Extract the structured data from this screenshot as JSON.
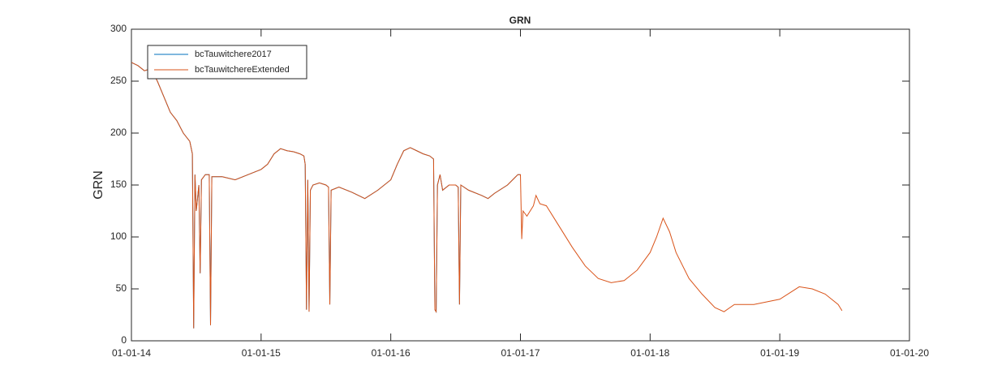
{
  "chart_data": {
    "type": "line",
    "title": "GRN",
    "ylabel": "GRN",
    "x": [
      2014.0,
      2014.05,
      2014.1,
      2014.15,
      2014.2,
      2014.25,
      2014.3,
      2014.35,
      2014.4,
      2014.45,
      2014.47,
      2014.48,
      2014.49,
      2014.5,
      2014.52,
      2014.53,
      2014.54,
      2014.57,
      2014.6,
      2014.61,
      2014.62,
      2014.7,
      2014.8,
      2014.9,
      2015.0,
      2015.05,
      2015.1,
      2015.15,
      2015.2,
      2015.25,
      2015.3,
      2015.33,
      2015.34,
      2015.35,
      2015.36,
      2015.37,
      2015.38,
      2015.4,
      2015.45,
      2015.5,
      2015.52,
      2015.53,
      2015.54,
      2015.6,
      2015.7,
      2015.8,
      2015.9,
      2016.0,
      2016.05,
      2016.1,
      2016.15,
      2016.2,
      2016.25,
      2016.3,
      2016.33,
      2016.34,
      2016.35,
      2016.36,
      2016.38,
      2016.4,
      2016.45,
      2016.5,
      2016.52,
      2016.53,
      2016.54,
      2016.6,
      2016.7,
      2016.75,
      2016.8,
      2016.9,
      2016.98,
      2017.0,
      2017.01,
      2017.02,
      2017.05,
      2017.1,
      2017.12,
      2017.15,
      2017.2,
      2017.3,
      2017.4,
      2017.5,
      2017.6,
      2017.7,
      2017.8,
      2017.9,
      2018.0,
      2018.05,
      2018.1,
      2018.15,
      2018.2,
      2018.3,
      2018.4,
      2018.5,
      2018.57,
      2018.65,
      2018.8,
      2019.0,
      2019.1,
      2019.15,
      2019.25,
      2019.35,
      2019.45,
      2019.48
    ],
    "series": [
      {
        "name": "bcTauwitchere2017",
        "color": "#0072BD",
        "values": [
          268,
          265,
          260,
          262,
          250,
          235,
          220,
          212,
          200,
          192,
          180,
          12,
          160,
          125,
          150,
          65,
          155,
          160,
          160,
          15,
          158,
          158,
          155,
          160,
          165,
          170,
          180,
          185,
          183,
          182,
          180,
          178,
          170,
          30,
          155,
          28,
          145,
          150,
          152,
          150,
          148,
          35,
          145,
          148,
          143,
          137,
          145,
          155,
          170,
          183,
          186,
          183,
          180,
          178,
          175,
          30,
          28,
          150,
          160,
          145,
          150,
          150,
          148,
          35,
          150,
          145,
          140,
          137,
          142,
          150,
          160,
          160,
          null,
          null,
          null,
          null,
          null,
          null,
          null,
          null,
          null,
          null,
          null,
          null,
          null,
          null,
          null,
          null,
          null,
          null,
          null,
          null,
          null,
          null,
          null,
          null,
          null,
          null,
          null,
          null,
          null,
          null,
          null,
          null
        ]
      },
      {
        "name": "bcTauwitchereExtended",
        "color": "#D95319",
        "values": [
          268,
          265,
          260,
          262,
          250,
          235,
          220,
          212,
          200,
          192,
          180,
          12,
          160,
          125,
          150,
          65,
          155,
          160,
          160,
          15,
          158,
          158,
          155,
          160,
          165,
          170,
          180,
          185,
          183,
          182,
          180,
          178,
          170,
          30,
          155,
          28,
          145,
          150,
          152,
          150,
          148,
          35,
          145,
          148,
          143,
          137,
          145,
          155,
          170,
          183,
          186,
          183,
          180,
          178,
          175,
          30,
          28,
          150,
          160,
          145,
          150,
          150,
          148,
          35,
          150,
          145,
          140,
          137,
          142,
          150,
          160,
          160,
          98,
          125,
          120,
          130,
          140,
          132,
          130,
          110,
          90,
          72,
          60,
          56,
          58,
          68,
          85,
          100,
          118,
          105,
          85,
          60,
          45,
          32,
          28,
          35,
          35,
          40,
          48,
          52,
          50,
          45,
          35,
          29
        ]
      }
    ],
    "xlim": [
      2014,
      2020
    ],
    "xticks": [
      {
        "value": 2014,
        "label": "01-01-14"
      },
      {
        "value": 2015,
        "label": "01-01-15"
      },
      {
        "value": 2016,
        "label": "01-01-16"
      },
      {
        "value": 2017,
        "label": "01-01-17"
      },
      {
        "value": 2018,
        "label": "01-01-18"
      },
      {
        "value": 2019,
        "label": "01-01-19"
      },
      {
        "value": 2020,
        "label": "01-01-20"
      }
    ],
    "ylim": [
      0,
      300
    ],
    "yticks": [
      0,
      50,
      100,
      150,
      200,
      250,
      300
    ],
    "grid": false,
    "legend": "northwest"
  }
}
